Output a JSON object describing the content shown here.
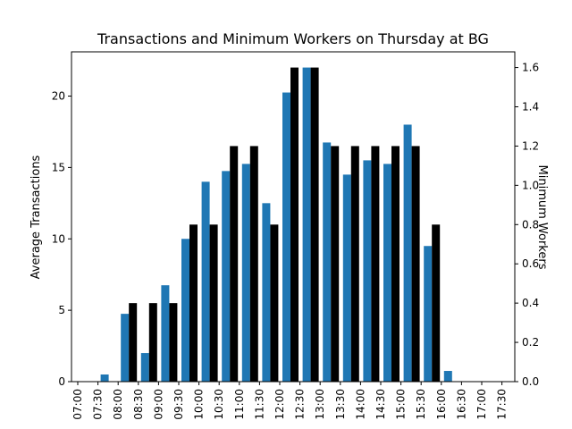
{
  "chart_data": {
    "type": "bar",
    "title": "Transactions and Minimum Workers on Thursday at BG",
    "ylabel_left": "Average Transactions",
    "ylabel_right": "Minimum Workers",
    "categories": [
      "07:00",
      "07:30",
      "08:00",
      "08:30",
      "09:00",
      "09:30",
      "10:00",
      "10:30",
      "11:00",
      "11:30",
      "12:00",
      "12:30",
      "13:00",
      "13:30",
      "14:00",
      "14:30",
      "15:00",
      "15:30",
      "16:00",
      "16:30",
      "17:00",
      "17:30"
    ],
    "ylim_left": [
      0,
      23.1
    ],
    "ylim_right": [
      0,
      1.68
    ],
    "yticks_left": [
      0,
      5,
      10,
      15,
      20
    ],
    "yticks_right": [
      0.0,
      0.2,
      0.4,
      0.6,
      0.8,
      1.0,
      1.2,
      1.4,
      1.6
    ],
    "series": [
      {
        "axis": "left",
        "color": "#1f77b4",
        "values": [
          0,
          0.5,
          4.75,
          2.0,
          6.75,
          10.0,
          14.0,
          14.75,
          15.25,
          12.5,
          20.25,
          22.0,
          16.75,
          14.5,
          15.5,
          15.25,
          18.0,
          9.5,
          0.75,
          0,
          0,
          0
        ]
      },
      {
        "axis": "right",
        "color": "#000000",
        "values": [
          0,
          0,
          0.4,
          0.4,
          0.4,
          0.8,
          0.8,
          1.2,
          1.2,
          0.8,
          1.6,
          1.6,
          1.2,
          1.2,
          1.2,
          1.2,
          1.2,
          0.8,
          0,
          0,
          0,
          0
        ]
      }
    ]
  }
}
